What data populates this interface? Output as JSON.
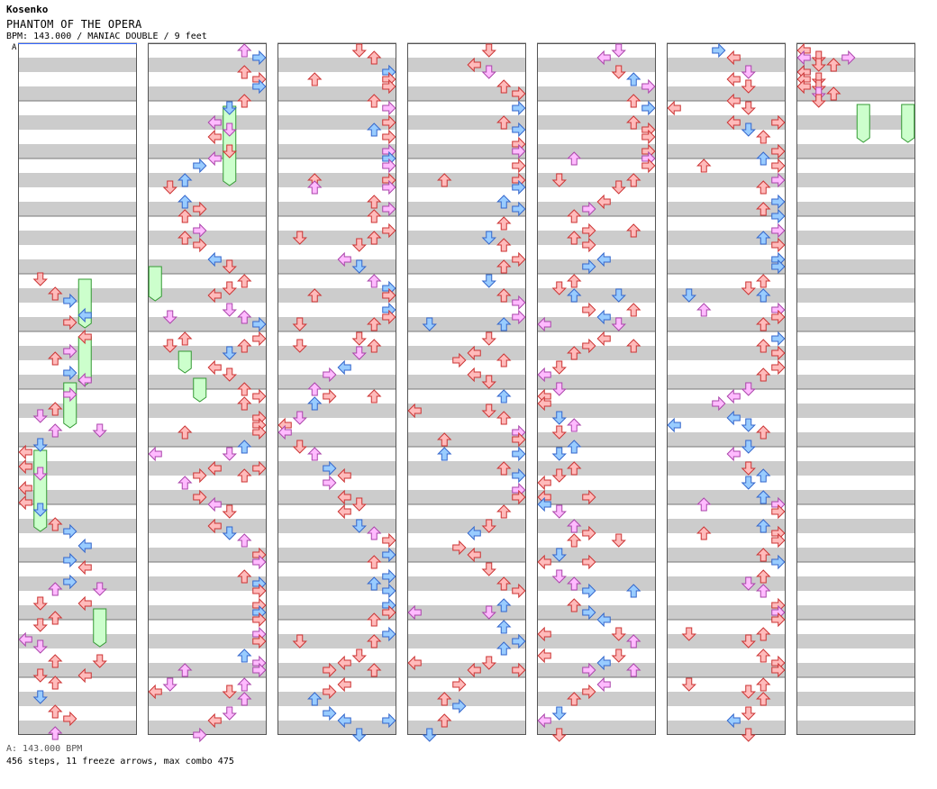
{
  "header": {
    "artist": "Kosenko",
    "title": "PHANTOM OF THE OPERA",
    "info": "BPM: 143.000 / MANIAC DOUBLE / 9 feet",
    "marker": "A"
  },
  "footer": {
    "bpm_line": "A: 143.000 BPM",
    "stats": "456 steps, 11 freeze arrows, max combo 475"
  },
  "colors": {
    "stripe": "#cccccc",
    "background": "#ffffff",
    "red_fill": "#ffbbbb",
    "red_stroke": "#cc3333",
    "blue_fill": "#99ccff",
    "blue_stroke": "#3366cc",
    "pink_fill": "#ffbbff",
    "pink_stroke": "#aa44aa",
    "freeze_fill": "#ccffcc",
    "freeze_stroke": "#339933"
  },
  "chart_data": {
    "type": "step-chart",
    "columns": 7,
    "measures_per_column": 12,
    "lanes": 8,
    "freeze_arrows": 11,
    "steps": 456,
    "max_combo": 475,
    "bpm": 143.0
  }
}
